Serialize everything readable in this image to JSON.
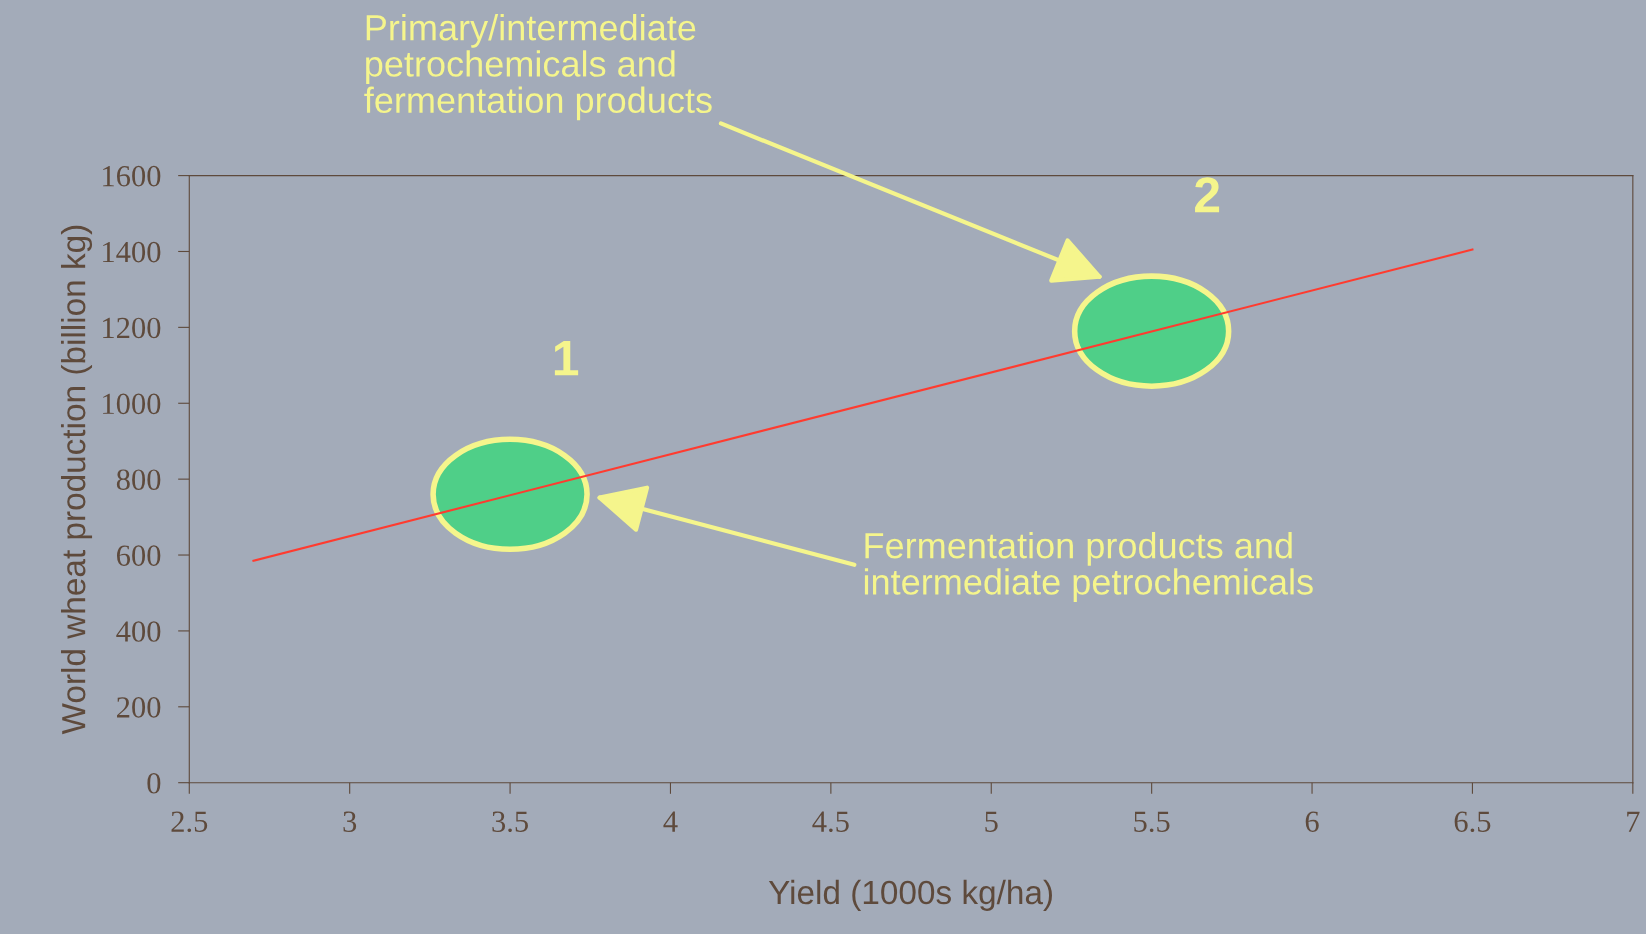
{
  "chart_data": {
    "type": "line",
    "xlabel": "Yield (1000s kg/ha)",
    "ylabel": "World wheat production (billion kg)",
    "series": [
      {
        "color": "#ff3b2f",
        "x": [
          2.7,
          6.5
        ],
        "values": [
          585,
          1405
        ]
      }
    ],
    "xlim": [
      2.5,
      7
    ],
    "xticks": [
      2.5,
      3,
      3.5,
      4,
      4.5,
      5,
      5.5,
      6,
      6.5,
      7
    ],
    "ylim": [
      0,
      1600
    ],
    "yticks": [
      0,
      200,
      400,
      600,
      800,
      1000,
      1200,
      1400,
      1600
    ],
    "grid": false,
    "legend": false,
    "marker": "none",
    "line_style": "solid",
    "annotations": [
      {
        "text": "1",
        "x": 3.5,
        "y": 760
      },
      {
        "text": "2",
        "x": 5.5,
        "y": 1190
      },
      "Primary/intermediate\npetrochemicals and\nfermentation products",
      "Fermentation products and\nintermediate petrochemicals"
    ]
  }
}
